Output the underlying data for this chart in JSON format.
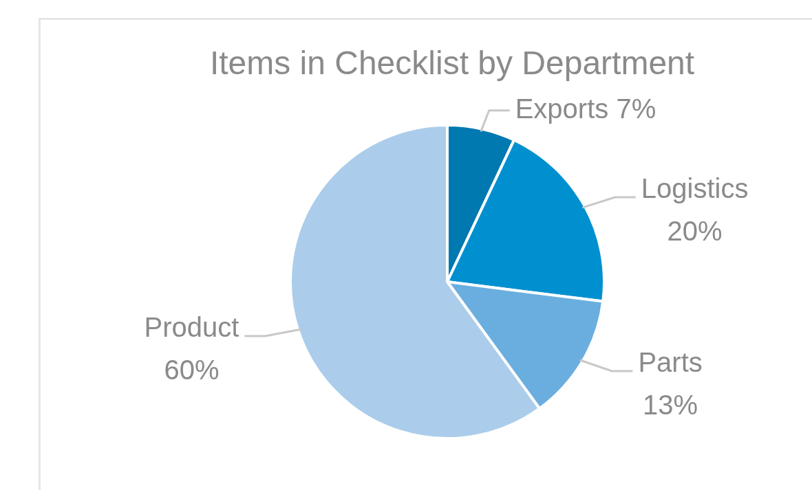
{
  "chart_data": {
    "type": "pie",
    "title": "Items in Checklist by Department",
    "categories": [
      "Exports",
      "Logistics",
      "Parts",
      "Product"
    ],
    "values": [
      7,
      20,
      13,
      60
    ],
    "value_labels": [
      "7%",
      "20%",
      "13%",
      "60%"
    ],
    "colors": [
      "#0078b0",
      "#0090d0",
      "#6aaee0",
      "#abcdeb"
    ],
    "data_labels": true,
    "legend": false
  }
}
